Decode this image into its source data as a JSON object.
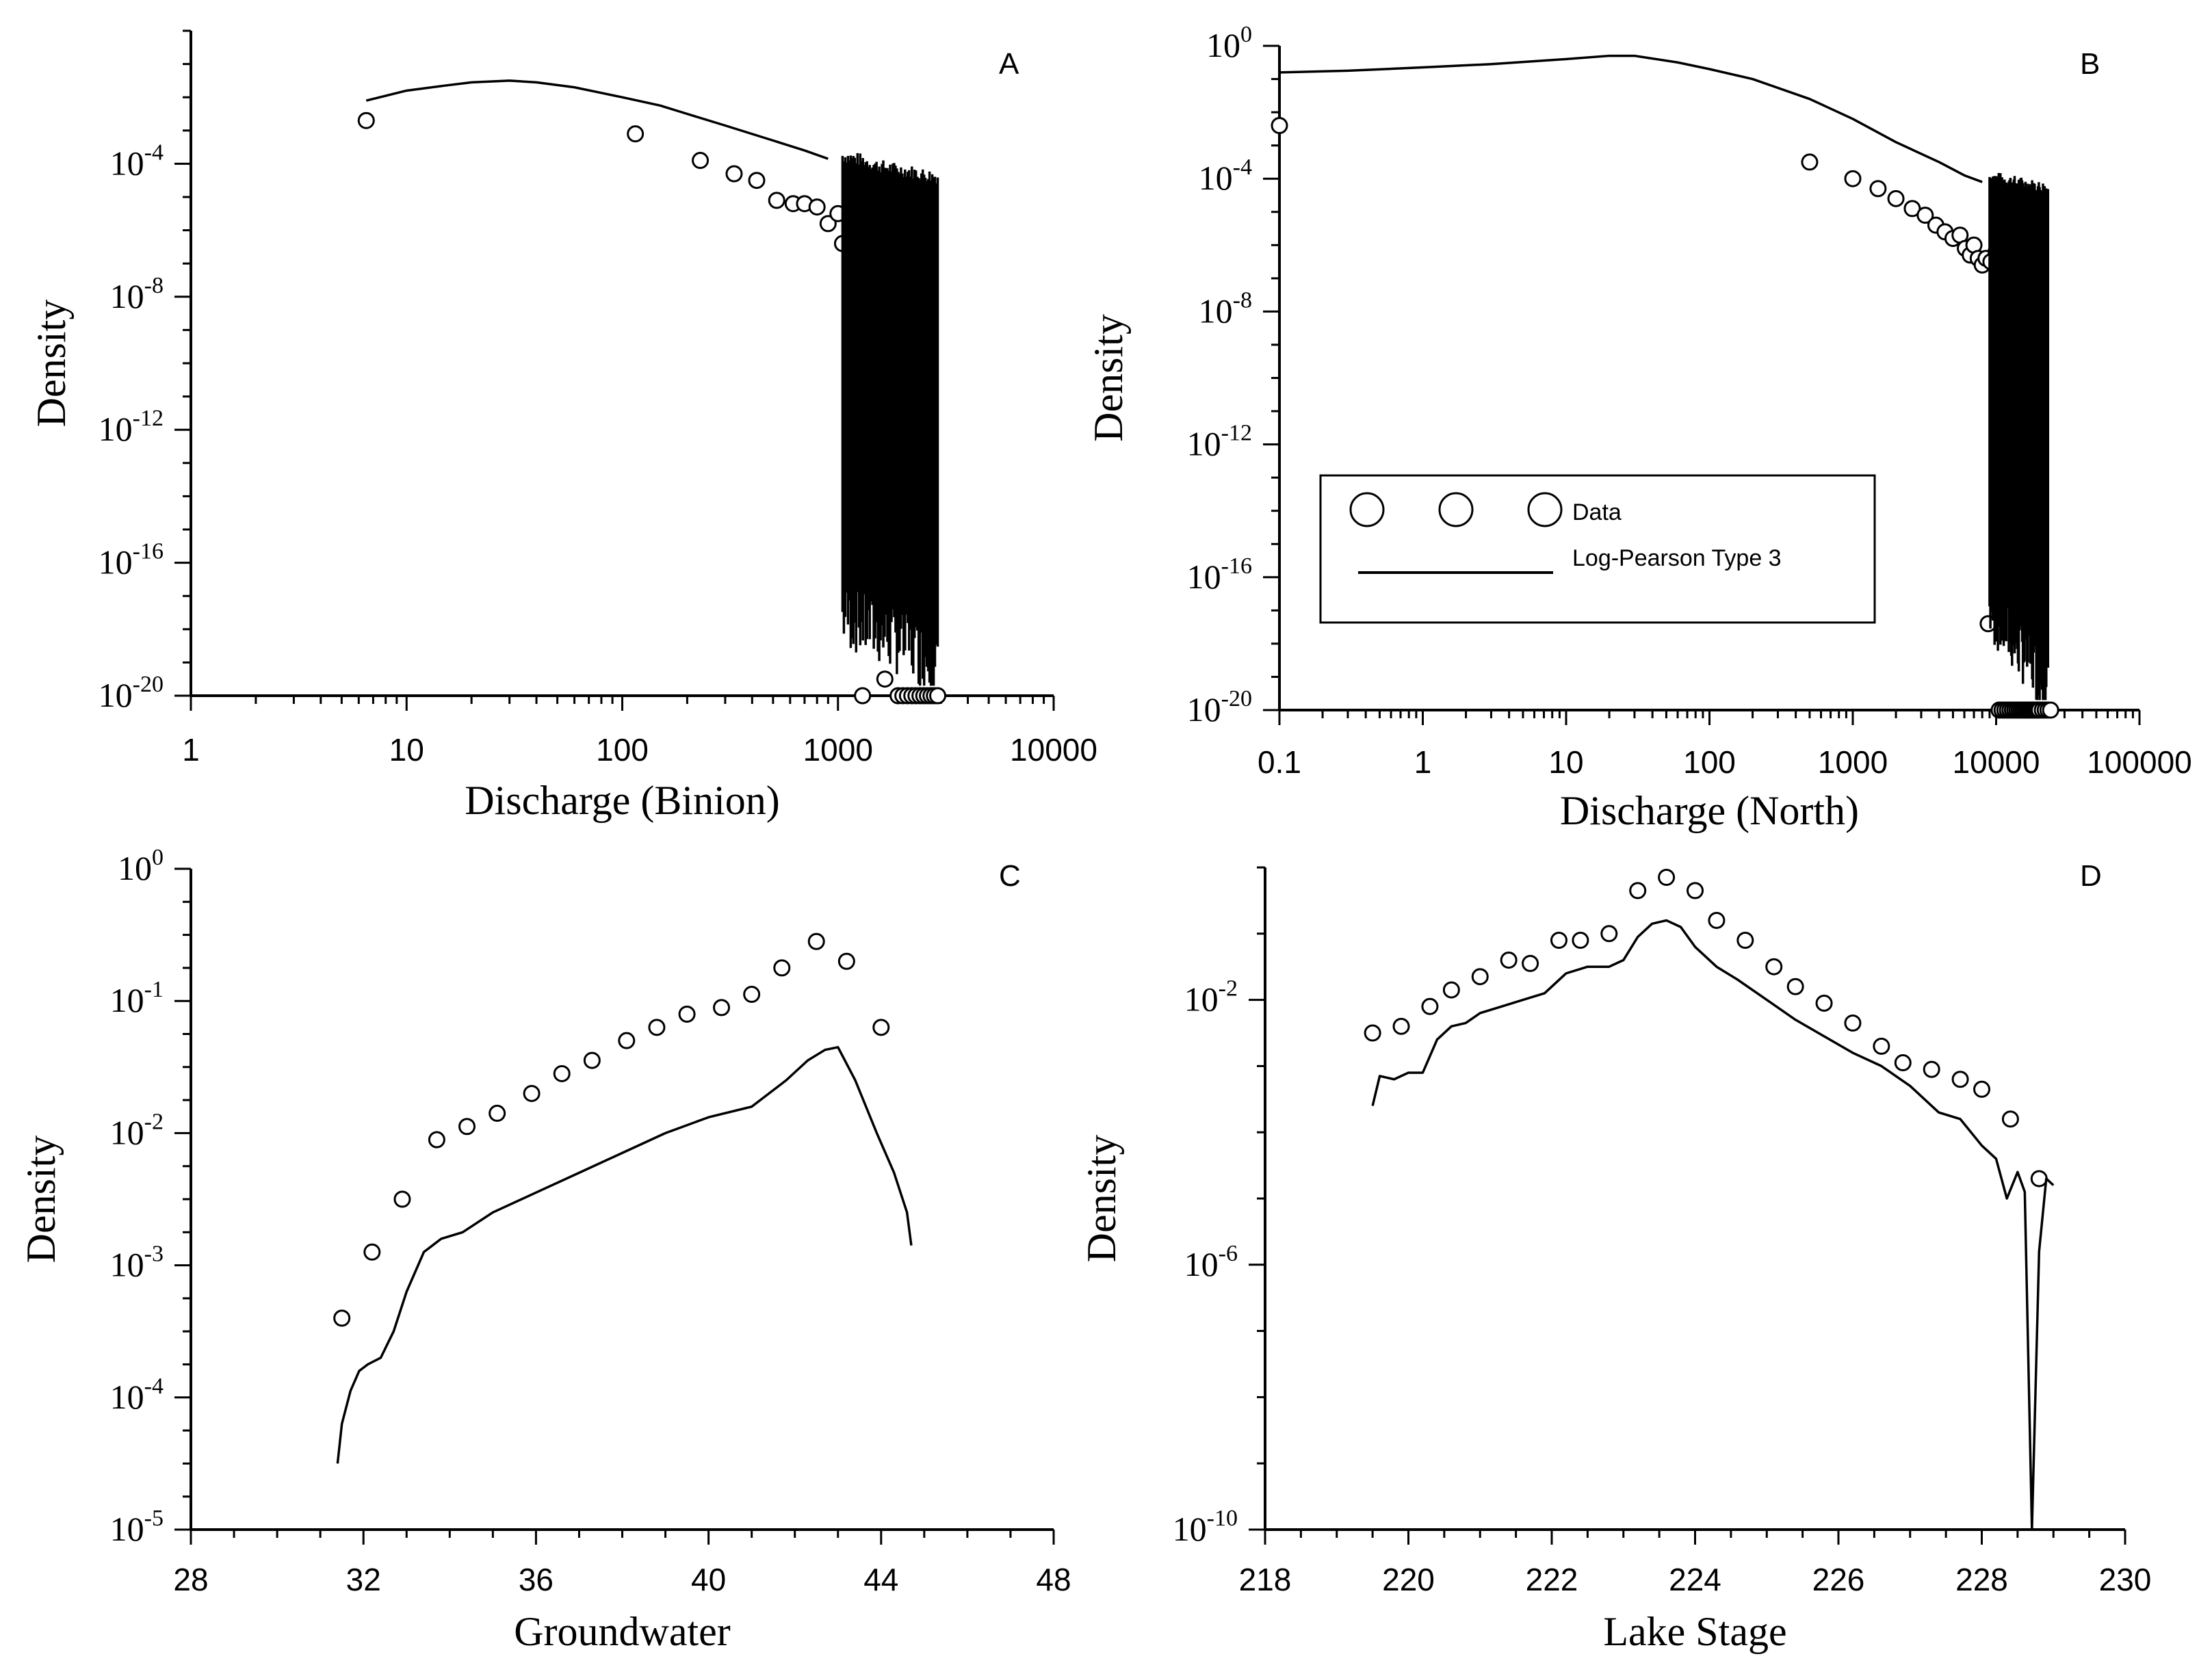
{
  "chart_data": [
    {
      "panel": "A",
      "type": "scatter",
      "xscale": "log",
      "xlim": [
        1,
        10000
      ],
      "ylim_exp": [
        -20,
        0
      ],
      "xlabel": "Discharge (Binion)",
      "ylabel": "Density",
      "xticks": [
        {
          "v": 1,
          "label": "1"
        },
        {
          "v": 10,
          "label": "10"
        },
        {
          "v": 100,
          "label": "100"
        },
        {
          "v": 1000,
          "label": "1000"
        },
        {
          "v": 10000,
          "label": "10000"
        }
      ],
      "yticks": [
        {
          "e": -4,
          "base": "10",
          "exp": "-4"
        },
        {
          "e": -8,
          "base": "10",
          "exp": "-8"
        },
        {
          "e": -12,
          "base": "10",
          "exp": "-12"
        },
        {
          "e": -16,
          "base": "10",
          "exp": "-16"
        },
        {
          "e": -20,
          "base": "10",
          "exp": "-20"
        }
      ],
      "series": [
        {
          "name": "Data",
          "kind": "points",
          "x": [
            6.5,
            115,
            230,
            330,
            420,
            520,
            620,
            700,
            800,
            900,
            1000,
            1050,
            1150,
            1450,
            1700,
            1850,
            1500,
            1300,
            1650,
            1900,
            2000,
            2100,
            2200,
            2300,
            2400,
            2500,
            2600,
            2700,
            2800,
            2900
          ],
          "y_exp": [
            -2.7,
            -3.1,
            -3.9,
            -4.3,
            -4.5,
            -5.1,
            -5.2,
            -5.2,
            -5.3,
            -5.8,
            -5.5,
            -6.4,
            -6.6,
            -6.0,
            -7.1,
            -9.9,
            -10.2,
            -20.0,
            -19.5,
            -20.0,
            -20.0,
            -20.0,
            -20.0,
            -20.0,
            -20.0,
            -20.0,
            -20.0,
            -20.0,
            -20.0,
            -20.0
          ]
        },
        {
          "name": "Log-Pearson Type 3",
          "kind": "line",
          "x": [
            6.5,
            10,
            15,
            20,
            30,
            40,
            60,
            100,
            150,
            200,
            300,
            500,
            700,
            900,
            1100,
            1300,
            1500,
            1800,
            2200,
            2600,
            2900
          ],
          "y_exp": [
            -2.1,
            -1.8,
            -1.65,
            -1.55,
            -1.5,
            -1.55,
            -1.7,
            -2.0,
            -2.25,
            -2.5,
            -2.85,
            -3.3,
            -3.6,
            -3.85,
            -4.0,
            -4.1,
            -4.25,
            -4.35,
            -4.45,
            -4.55,
            -4.6
          ],
          "spike_range": [
            1050,
            2900
          ],
          "spike_min_exp": [
            -17.6,
            -19.0
          ]
        }
      ]
    },
    {
      "panel": "B",
      "type": "scatter",
      "xscale": "log",
      "xlim": [
        0.1,
        100000
      ],
      "ylim_exp": [
        -20,
        0
      ],
      "xlabel": "Discharge (North)",
      "ylabel": "Density",
      "xticks": [
        {
          "v": 0.1,
          "label": "0.1"
        },
        {
          "v": 1,
          "label": "1"
        },
        {
          "v": 10,
          "label": "10"
        },
        {
          "v": 100,
          "label": "100"
        },
        {
          "v": 1000,
          "label": "1000"
        },
        {
          "v": 10000,
          "label": "10000"
        },
        {
          "v": 100000,
          "label": "100000"
        }
      ],
      "yticks": [
        {
          "e": 0,
          "base": "10",
          "exp": "0"
        },
        {
          "e": -4,
          "base": "10",
          "exp": "-4"
        },
        {
          "e": -8,
          "base": "10",
          "exp": "-8"
        },
        {
          "e": -12,
          "base": "10",
          "exp": "-12"
        },
        {
          "e": -16,
          "base": "10",
          "exp": "-16"
        },
        {
          "e": -20,
          "base": "10",
          "exp": "-20"
        }
      ],
      "legend": {
        "position": "lower-middle",
        "data_label": "Data",
        "line_label": "Log-Pearson Type 3"
      },
      "series": [
        {
          "name": "Data",
          "kind": "points",
          "x": [
            0.1,
            500,
            1000,
            1500,
            2000,
            2600,
            3200,
            3800,
            4400,
            5000,
            5600,
            6100,
            6600,
            7000,
            7500,
            8000,
            8500,
            9200,
            10000,
            11000,
            11500,
            12000,
            12500,
            11200,
            8800,
            10500,
            11000,
            11500,
            12000,
            12500,
            13000,
            13500,
            14000,
            14500,
            15000,
            15500,
            16000,
            16500,
            17000,
            17500,
            18000,
            18500,
            19000,
            19500,
            20000,
            21000,
            22000,
            23000,
            24000
          ],
          "y_exp": [
            -2.4,
            -3.5,
            -4.0,
            -4.3,
            -4.6,
            -4.9,
            -5.1,
            -5.4,
            -5.6,
            -5.8,
            -5.7,
            -6.1,
            -6.3,
            -6.0,
            -6.4,
            -6.6,
            -6.4,
            -6.5,
            -6.2,
            -6.5,
            -7.2,
            -7.8,
            -11.0,
            -13.7,
            -17.4,
            -20.0,
            -20.0,
            -20.0,
            -20.0,
            -20.0,
            -20.0,
            -20.0,
            -20.0,
            -20.0,
            -20.0,
            -20.0,
            -20.0,
            -20.0,
            -20.0,
            -20.0,
            -20.0,
            -20.0,
            -20.0,
            -20.0,
            -20.0,
            -20.0,
            -20.0,
            -20.0,
            -20.0
          ]
        },
        {
          "name": "Log-Pearson Type 3",
          "kind": "line",
          "x": [
            0.1,
            0.3,
            1,
            3,
            10,
            20,
            30,
            60,
            100,
            200,
            500,
            1000,
            2000,
            4000,
            6000,
            8000,
            10000,
            13000,
            17000,
            23000
          ],
          "y_exp": [
            -0.8,
            -0.75,
            -0.65,
            -0.55,
            -0.4,
            -0.3,
            -0.3,
            -0.5,
            -0.7,
            -1.0,
            -1.6,
            -2.2,
            -2.9,
            -3.5,
            -3.9,
            -4.1,
            -4.2,
            -4.3,
            -4.4,
            -4.5
          ],
          "spike_range": [
            9000,
            23000
          ],
          "spike_min_exp": [
            -17.0,
            -19.2
          ]
        }
      ]
    },
    {
      "panel": "C",
      "type": "scatter",
      "xscale": "linear",
      "xlim": [
        28,
        48
      ],
      "ylim_exp": [
        -5,
        0
      ],
      "xlabel": "Groundwater",
      "ylabel": "Density",
      "xticks": [
        {
          "v": 28,
          "label": "28"
        },
        {
          "v": 32,
          "label": "32"
        },
        {
          "v": 36,
          "label": "36"
        },
        {
          "v": 40,
          "label": "40"
        },
        {
          "v": 44,
          "label": "44"
        },
        {
          "v": 48,
          "label": "48"
        }
      ],
      "yticks": [
        {
          "e": 0,
          "base": "10",
          "exp": "0"
        },
        {
          "e": -1,
          "base": "10",
          "exp": "-1"
        },
        {
          "e": -2,
          "base": "10",
          "exp": "-2"
        },
        {
          "e": -3,
          "base": "10",
          "exp": "-3"
        },
        {
          "e": -4,
          "base": "10",
          "exp": "-4"
        },
        {
          "e": -5,
          "base": "10",
          "exp": "-5"
        }
      ],
      "series": [
        {
          "name": "Data",
          "kind": "points",
          "x": [
            31.5,
            32.2,
            32.9,
            33.7,
            34.4,
            35.1,
            35.9,
            36.6,
            37.3,
            38.1,
            38.8,
            39.5,
            40.3,
            41.0,
            41.7,
            42.5,
            43.2,
            44.0
          ],
          "y_exp": [
            -3.4,
            -2.9,
            -2.5,
            -2.05,
            -1.95,
            -1.85,
            -1.7,
            -1.55,
            -1.45,
            -1.3,
            -1.2,
            -1.1,
            -1.05,
            -0.95,
            -0.75,
            -0.55,
            -0.7,
            -1.2
          ]
        },
        {
          "name": "Log-Pearson Type 3",
          "kind": "line",
          "x": [
            31.4,
            31.5,
            31.7,
            31.9,
            32.1,
            32.4,
            32.7,
            33.0,
            33.4,
            33.8,
            34.3,
            35.0,
            36.0,
            37.0,
            38.0,
            39.0,
            40.0,
            41.0,
            41.8,
            42.3,
            42.7,
            43.0,
            43.4,
            43.9,
            44.3,
            44.6,
            44.7
          ],
          "y_exp": [
            -4.5,
            -4.2,
            -3.95,
            -3.8,
            -3.75,
            -3.7,
            -3.5,
            -3.2,
            -2.9,
            -2.8,
            -2.75,
            -2.6,
            -2.45,
            -2.3,
            -2.15,
            -2.0,
            -1.88,
            -1.8,
            -1.6,
            -1.45,
            -1.37,
            -1.35,
            -1.6,
            -2.0,
            -2.3,
            -2.6,
            -2.85
          ]
        }
      ]
    },
    {
      "panel": "D",
      "type": "scatter",
      "xscale": "linear",
      "xlim": [
        218,
        230
      ],
      "ylim_exp": [
        -10,
        0
      ],
      "xlabel": "Lake Stage",
      "ylabel": "Density",
      "xticks": [
        {
          "v": 218,
          "label": "218"
        },
        {
          "v": 220,
          "label": "220"
        },
        {
          "v": 222,
          "label": "222"
        },
        {
          "v": 224,
          "label": "224"
        },
        {
          "v": 226,
          "label": "226"
        },
        {
          "v": 228,
          "label": "228"
        },
        {
          "v": 230,
          "label": "230"
        }
      ],
      "yticks": [
        {
          "e": -2,
          "base": "10",
          "exp": "-2"
        },
        {
          "e": -6,
          "base": "10",
          "exp": "-6"
        },
        {
          "e": -10,
          "base": "10",
          "exp": "-10"
        }
      ],
      "series": [
        {
          "name": "Data",
          "kind": "points",
          "x": [
            219.5,
            219.9,
            220.3,
            220.6,
            221.0,
            221.4,
            221.7,
            222.1,
            222.4,
            222.8,
            223.2,
            223.6,
            224.0,
            224.3,
            224.7,
            225.1,
            225.4,
            225.8,
            226.2,
            226.6,
            226.9,
            227.3,
            227.7,
            228.0,
            228.4,
            228.8
          ],
          "y_exp": [
            -2.5,
            -2.4,
            -2.1,
            -1.85,
            -1.65,
            -1.4,
            -1.45,
            -1.1,
            -1.1,
            -1.0,
            -0.35,
            -0.15,
            -0.35,
            -0.8,
            -1.1,
            -1.5,
            -1.8,
            -2.05,
            -2.35,
            -2.7,
            -2.95,
            -3.05,
            -3.2,
            -3.35,
            -3.8,
            -4.7
          ]
        },
        {
          "name": "Log-Pearson Type 3",
          "kind": "line",
          "x": [
            219.5,
            219.6,
            219.8,
            220.0,
            220.2,
            220.4,
            220.6,
            220.8,
            221.0,
            221.3,
            221.6,
            221.9,
            222.2,
            222.5,
            222.8,
            223.0,
            223.2,
            223.4,
            223.6,
            223.8,
            224.0,
            224.3,
            224.6,
            225.0,
            225.4,
            225.8,
            226.2,
            226.6,
            227.0,
            227.4,
            227.7,
            228.0,
            228.2,
            228.35,
            228.5,
            228.6,
            228.7,
            228.8,
            228.9,
            229.0
          ],
          "y_exp": [
            -3.6,
            -3.15,
            -3.2,
            -3.1,
            -3.1,
            -2.6,
            -2.4,
            -2.35,
            -2.2,
            -2.1,
            -2.0,
            -1.9,
            -1.6,
            -1.5,
            -1.5,
            -1.4,
            -1.05,
            -0.85,
            -0.8,
            -0.9,
            -1.2,
            -1.5,
            -1.7,
            -2.0,
            -2.3,
            -2.55,
            -2.8,
            -3.0,
            -3.3,
            -3.7,
            -3.8,
            -4.2,
            -4.4,
            -5.0,
            -4.6,
            -4.9,
            -10.0,
            -5.8,
            -4.7,
            -4.8
          ]
        }
      ]
    }
  ]
}
